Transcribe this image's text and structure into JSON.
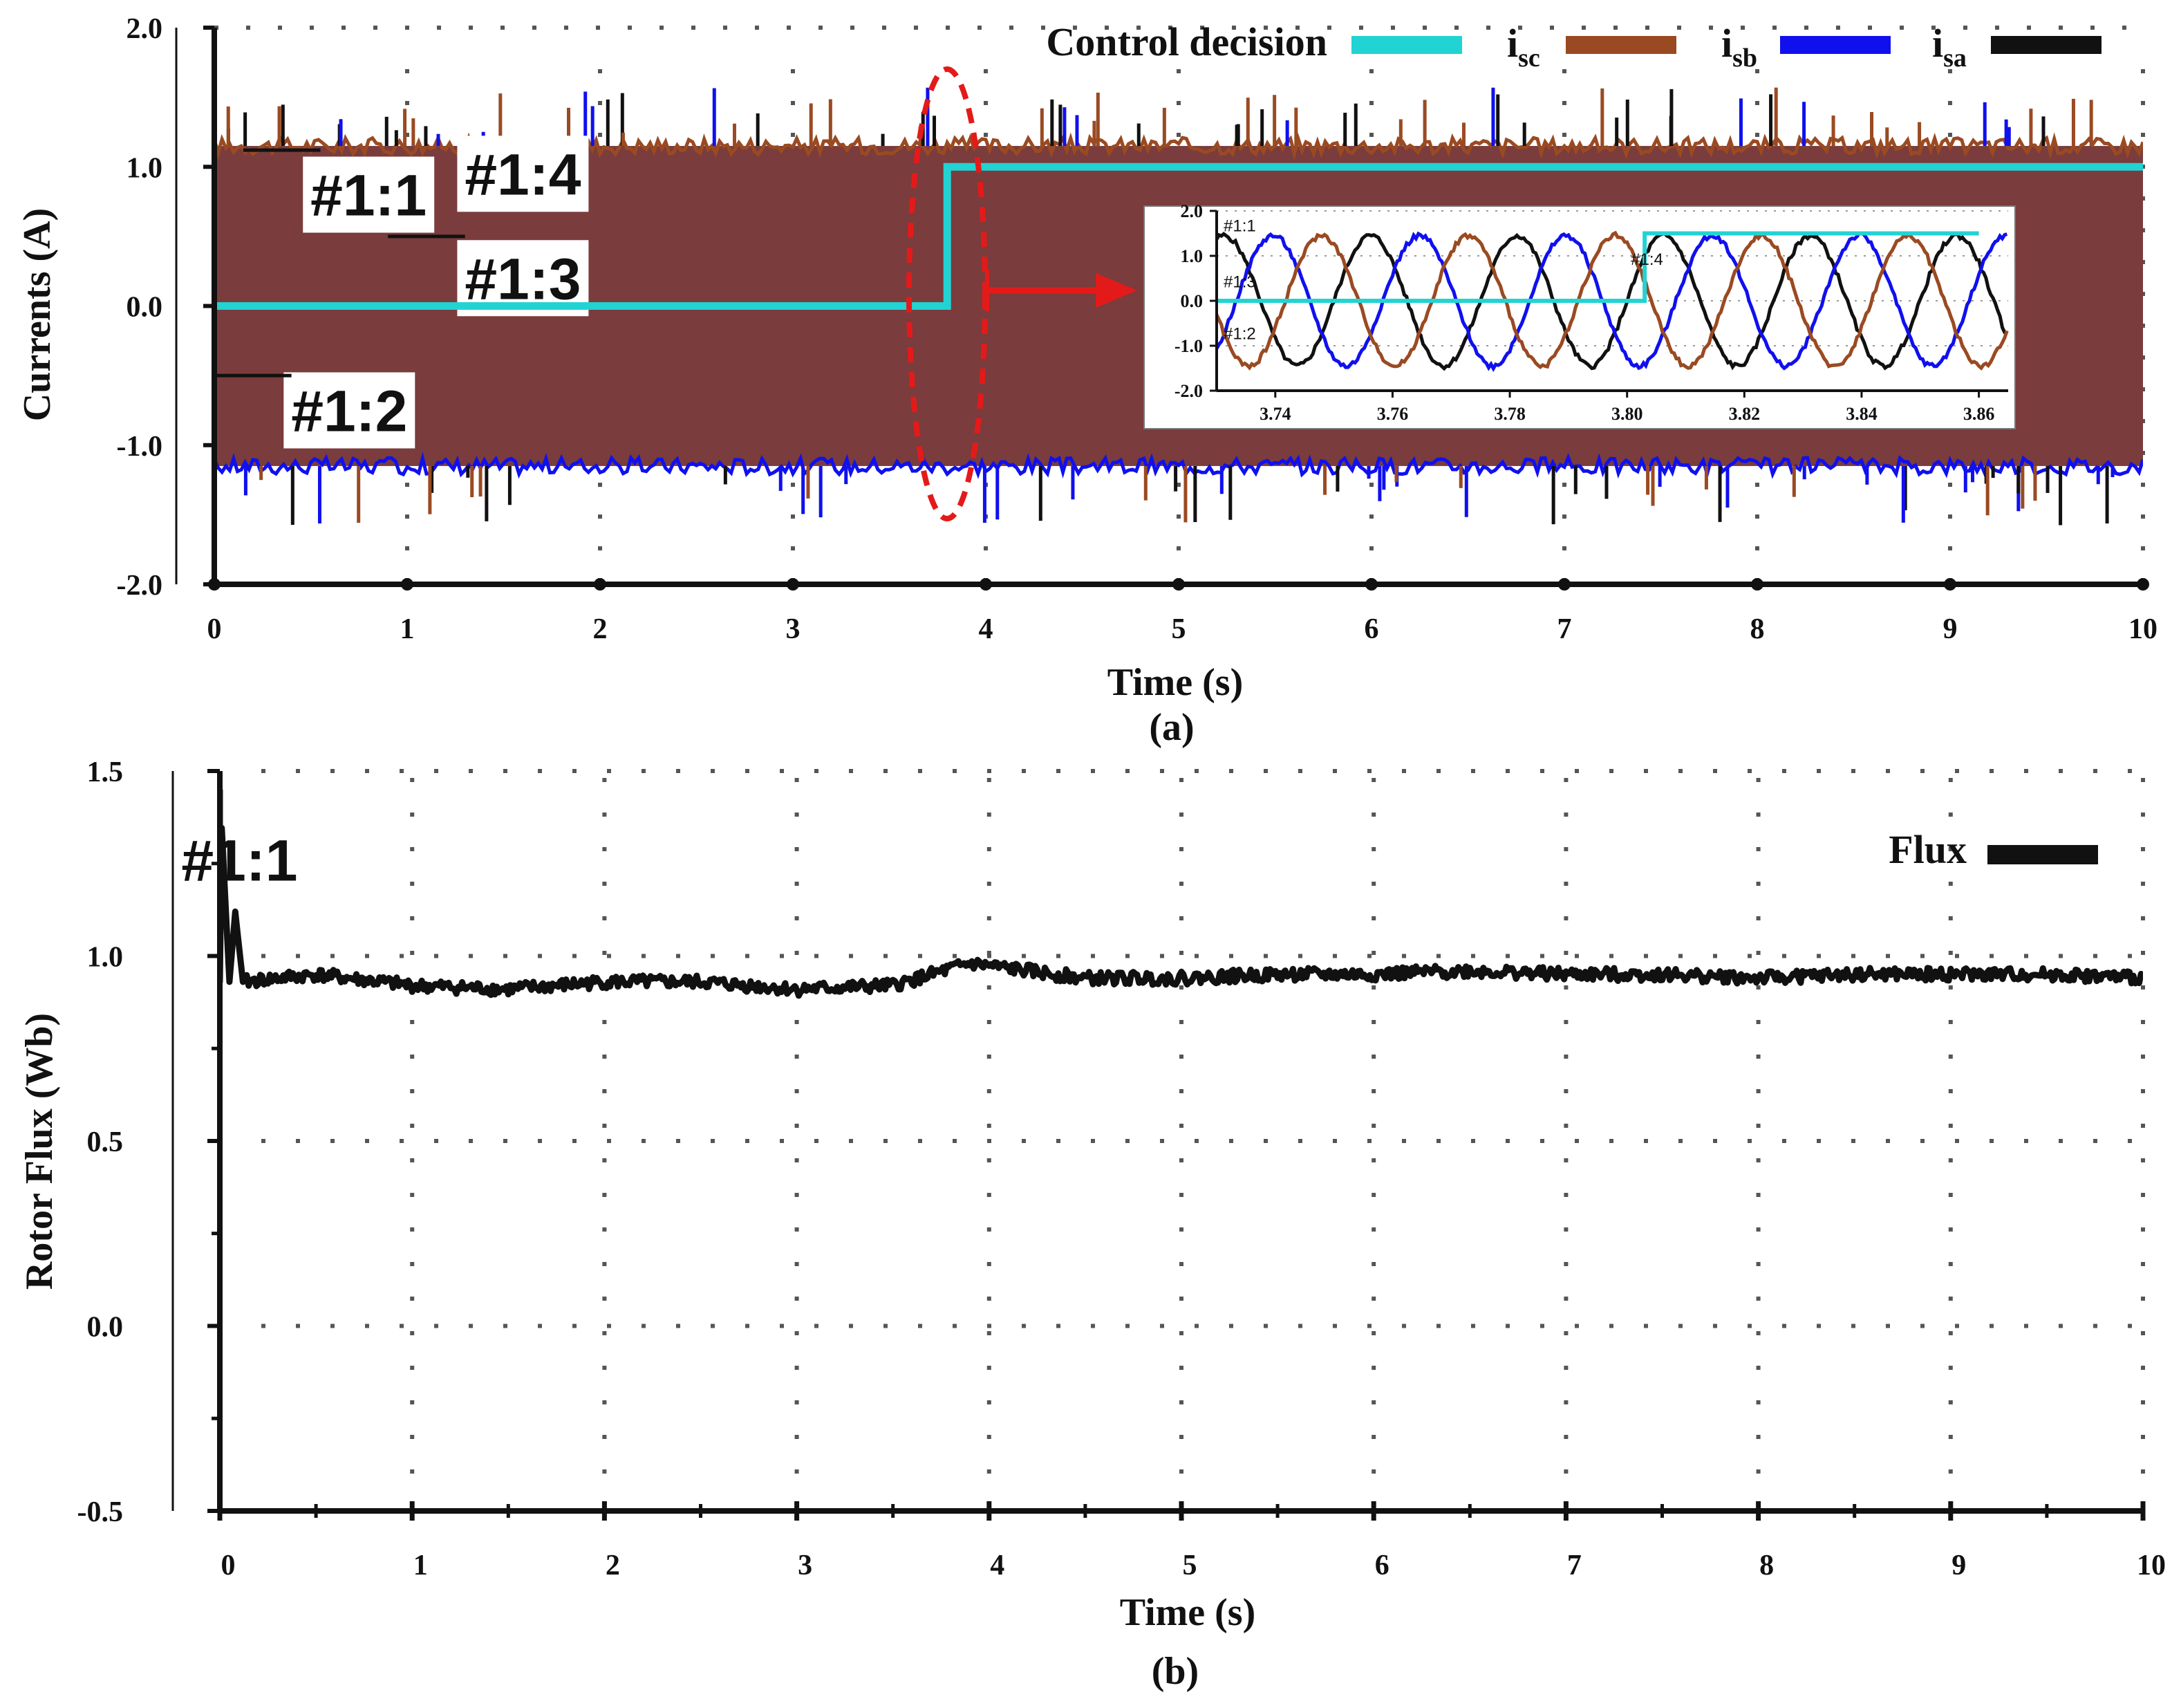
{
  "chart_data": [
    {
      "id": "a",
      "type": "line",
      "panel_label": "(a)",
      "xlabel": "Time (s)",
      "ylabel": "Currents (A)",
      "xlim": [
        0,
        10
      ],
      "ylim": [
        -2,
        2
      ],
      "x_ticks": [
        0,
        1,
        2,
        3,
        4,
        5,
        6,
        7,
        8,
        9,
        10
      ],
      "y_ticks": [
        2.0,
        1.0,
        0.0,
        -1.0,
        -2.0
      ],
      "y_tick_labels": [
        "2.0",
        "1.0",
        "0.0",
        "-1.0",
        "-2.0"
      ],
      "grid": "dotted",
      "legend_position": "top-right",
      "series": [
        {
          "name": "Control decision",
          "color": "#22d3d3",
          "x": [
            0,
            3.8,
            3.8,
            10
          ],
          "y": [
            0,
            0,
            1,
            1
          ]
        },
        {
          "name": "i",
          "subscript": "sc",
          "color": "#9a4a22",
          "amplitude": 1.15
        },
        {
          "name": "i",
          "subscript": "sb",
          "color": "#1010ee",
          "amplitude": 1.15
        },
        {
          "name": "i",
          "subscript": "sa",
          "color": "#111111",
          "amplitude": 1.15
        }
      ],
      "annotations": [
        {
          "text": "#1:1",
          "x": 0.8,
          "y": 0.8
        },
        {
          "text": "#1:4",
          "x": 1.6,
          "y": 0.95
        },
        {
          "text": "#1:3",
          "x": 1.6,
          "y": 0.2
        },
        {
          "text": "#1:2",
          "x": 0.7,
          "y": -0.75
        }
      ],
      "inset": {
        "xlim": [
          3.73,
          3.865
        ],
        "ylim": [
          -2,
          2
        ],
        "x_ticks": [
          3.74,
          3.76,
          3.78,
          3.8,
          3.82,
          3.84,
          3.86
        ],
        "x_tick_labels": [
          "3.74",
          "3.76",
          "3.78",
          "3.80",
          "3.82",
          "3.84",
          "3.86"
        ],
        "y_ticks": [
          2.0,
          1.0,
          0.0,
          -1.0,
          -2.0
        ],
        "y_tick_labels": [
          "2.0",
          "1.0",
          "0.0",
          "-1.0",
          "-2.0"
        ],
        "labels": [
          "#1:1",
          "#1:3",
          "#1:2",
          "#1:4"
        ],
        "step_time": 3.803,
        "frequency_hz": 40,
        "amplitude": 1.45
      }
    },
    {
      "id": "b",
      "type": "line",
      "panel_label": "(b)",
      "xlabel": "Time (s)",
      "ylabel": "Rotor Flux (Wb)",
      "xlim": [
        0,
        10
      ],
      "ylim": [
        -0.5,
        1.5
      ],
      "x_ticks": [
        0,
        1,
        2,
        3,
        4,
        5,
        6,
        7,
        8,
        9,
        10
      ],
      "y_ticks": [
        1.5,
        1.0,
        0.5,
        0.0,
        -0.5
      ],
      "y_tick_labels": [
        "1.5",
        "1.0",
        "0.5",
        "0.0",
        "-0.5"
      ],
      "grid": "dotted",
      "legend_position": "top-right",
      "series": [
        {
          "name": "Flux",
          "color": "#111111",
          "x": [
            0,
            0.05,
            0.08,
            0.12,
            0.3,
            0.5,
            1.0,
            1.5,
            2.0,
            2.5,
            3.0,
            3.5,
            3.9,
            4.5,
            5.0,
            5.5,
            6.0,
            6.5,
            7.0,
            7.5,
            8.0,
            8.5,
            9.0,
            9.5,
            10.0
          ],
          "y": [
            1.45,
            0.93,
            1.12,
            0.93,
            0.94,
            0.95,
            0.92,
            0.91,
            0.93,
            0.93,
            0.91,
            0.92,
            0.98,
            0.94,
            0.94,
            0.95,
            0.95,
            0.96,
            0.95,
            0.95,
            0.94,
            0.95,
            0.95,
            0.95,
            0.94
          ]
        }
      ],
      "annotations": [
        {
          "text": "#1:1",
          "x": 0.3,
          "y": 1.26
        }
      ]
    }
  ]
}
